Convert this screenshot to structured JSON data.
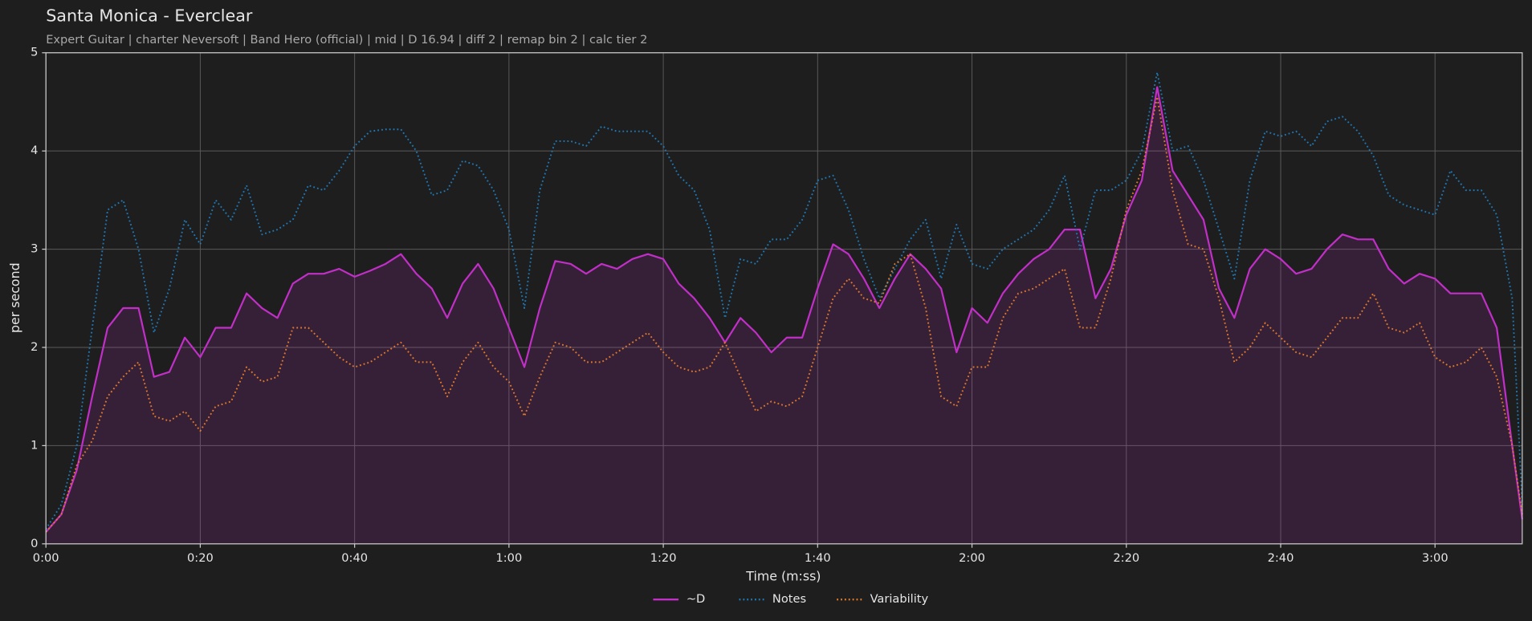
{
  "chart_data": {
    "type": "line",
    "title": "Santa Monica - Everclear",
    "subtitle": "Expert Guitar  |  charter Neversoft  |  Band Hero (official)  |  mid  |  D 16.94  |  diff 2  |  remap bin 2  |  calc tier 2",
    "x_label": "Time (m:ss)",
    "y_label": "per second",
    "legend": "lower center outside",
    "grid": true,
    "xlim": [
      0,
      191.3
    ],
    "ylim": [
      0,
      5
    ],
    "xticks": [
      {
        "value": 0,
        "label": "0:00"
      },
      {
        "value": 20,
        "label": "0:20"
      },
      {
        "value": 40,
        "label": "0:40"
      },
      {
        "value": 60,
        "label": "1:00"
      },
      {
        "value": 80,
        "label": "1:20"
      },
      {
        "value": 100,
        "label": "1:40"
      },
      {
        "value": 120,
        "label": "2:00"
      },
      {
        "value": 140,
        "label": "2:20"
      },
      {
        "value": 160,
        "label": "2:40"
      },
      {
        "value": 180,
        "label": "3:00"
      }
    ],
    "yticks": [
      0,
      1,
      2,
      3,
      4,
      5
    ],
    "x": [
      0,
      2,
      4,
      6,
      8,
      10,
      12,
      14,
      16,
      18,
      20,
      22,
      24,
      26,
      28,
      30,
      32,
      34,
      36,
      38,
      40,
      42,
      44,
      46,
      48,
      50,
      52,
      54,
      56,
      58,
      60,
      62,
      64,
      66,
      68,
      70,
      72,
      74,
      76,
      78,
      80,
      82,
      84,
      86,
      88,
      90,
      92,
      94,
      96,
      98,
      100,
      102,
      104,
      106,
      108,
      110,
      112,
      114,
      116,
      118,
      120,
      122,
      124,
      126,
      128,
      130,
      132,
      134,
      136,
      138,
      140,
      142,
      144,
      146,
      148,
      150,
      152,
      154,
      156,
      158,
      160,
      162,
      164,
      166,
      168,
      170,
      172,
      174,
      176,
      178,
      180,
      182,
      184,
      186,
      188,
      190,
      191.3
    ],
    "series": [
      {
        "name": "~D",
        "color": "#c22fc8",
        "style": "solid",
        "fill_area": true,
        "values": [
          0.12,
          0.3,
          0.75,
          1.5,
          2.2,
          2.4,
          2.4,
          1.7,
          1.75,
          2.1,
          1.9,
          2.2,
          2.2,
          2.55,
          2.4,
          2.3,
          2.65,
          2.75,
          2.75,
          2.8,
          2.72,
          2.78,
          2.85,
          2.95,
          2.75,
          2.6,
          2.3,
          2.65,
          2.85,
          2.6,
          2.2,
          1.8,
          2.4,
          2.88,
          2.85,
          2.75,
          2.85,
          2.8,
          2.9,
          2.95,
          2.9,
          2.65,
          2.5,
          2.3,
          2.05,
          2.3,
          2.15,
          1.95,
          2.1,
          2.1,
          2.6,
          3.05,
          2.95,
          2.7,
          2.4,
          2.7,
          2.95,
          2.8,
          2.6,
          1.95,
          2.4,
          2.25,
          2.55,
          2.75,
          2.9,
          3.0,
          3.2,
          3.2,
          2.5,
          2.8,
          3.35,
          3.7,
          4.65,
          3.8,
          3.55,
          3.3,
          2.6,
          2.3,
          2.8,
          3.0,
          2.9,
          2.75,
          2.8,
          3.0,
          3.15,
          3.1,
          3.1,
          2.8,
          2.65,
          2.75,
          2.7,
          2.55,
          2.55,
          2.55,
          2.2,
          1.0,
          0.25
        ]
      },
      {
        "name": "Notes",
        "color": "#1f77b4",
        "style": "dotted",
        "values": [
          0.15,
          0.4,
          1.0,
          2.2,
          3.4,
          3.5,
          3.0,
          2.15,
          2.6,
          3.3,
          3.05,
          3.5,
          3.3,
          3.65,
          3.15,
          3.2,
          3.3,
          3.65,
          3.6,
          3.8,
          4.05,
          4.2,
          4.22,
          4.22,
          4.0,
          3.55,
          3.6,
          3.9,
          3.85,
          3.6,
          3.2,
          2.4,
          3.6,
          4.1,
          4.1,
          4.05,
          4.25,
          4.2,
          4.2,
          4.2,
          4.05,
          3.75,
          3.6,
          3.2,
          2.3,
          2.9,
          2.85,
          3.1,
          3.1,
          3.3,
          3.7,
          3.75,
          3.4,
          2.9,
          2.5,
          2.8,
          3.1,
          3.3,
          2.7,
          3.25,
          2.85,
          2.8,
          3.0,
          3.1,
          3.2,
          3.4,
          3.75,
          3.0,
          3.6,
          3.6,
          3.7,
          4.0,
          4.8,
          4.0,
          4.05,
          3.7,
          3.2,
          2.7,
          3.7,
          4.2,
          4.15,
          4.2,
          4.05,
          4.3,
          4.35,
          4.2,
          3.95,
          3.55,
          3.45,
          3.4,
          3.35,
          3.8,
          3.6,
          3.6,
          3.35,
          2.5,
          0.4
        ]
      },
      {
        "name": "Variability",
        "color": "#e0782a",
        "style": "dotted",
        "values": [
          0.12,
          0.3,
          0.8,
          1.05,
          1.5,
          1.7,
          1.85,
          1.3,
          1.25,
          1.35,
          1.15,
          1.4,
          1.45,
          1.8,
          1.65,
          1.7,
          2.2,
          2.2,
          2.05,
          1.9,
          1.8,
          1.85,
          1.95,
          2.05,
          1.85,
          1.85,
          1.5,
          1.85,
          2.05,
          1.8,
          1.65,
          1.3,
          1.7,
          2.05,
          2.0,
          1.85,
          1.85,
          1.95,
          2.05,
          2.15,
          1.95,
          1.8,
          1.75,
          1.8,
          2.05,
          1.7,
          1.35,
          1.45,
          1.4,
          1.5,
          2.0,
          2.5,
          2.7,
          2.5,
          2.45,
          2.85,
          2.95,
          2.4,
          1.5,
          1.4,
          1.8,
          1.8,
          2.3,
          2.55,
          2.6,
          2.7,
          2.8,
          2.2,
          2.2,
          2.7,
          3.4,
          3.8,
          4.55,
          3.6,
          3.05,
          3.0,
          2.5,
          1.85,
          2.0,
          2.25,
          2.1,
          1.95,
          1.9,
          2.1,
          2.3,
          2.3,
          2.55,
          2.2,
          2.15,
          2.25,
          1.9,
          1.8,
          1.85,
          2.0,
          1.7,
          1.0,
          0.3
        ]
      }
    ]
  }
}
